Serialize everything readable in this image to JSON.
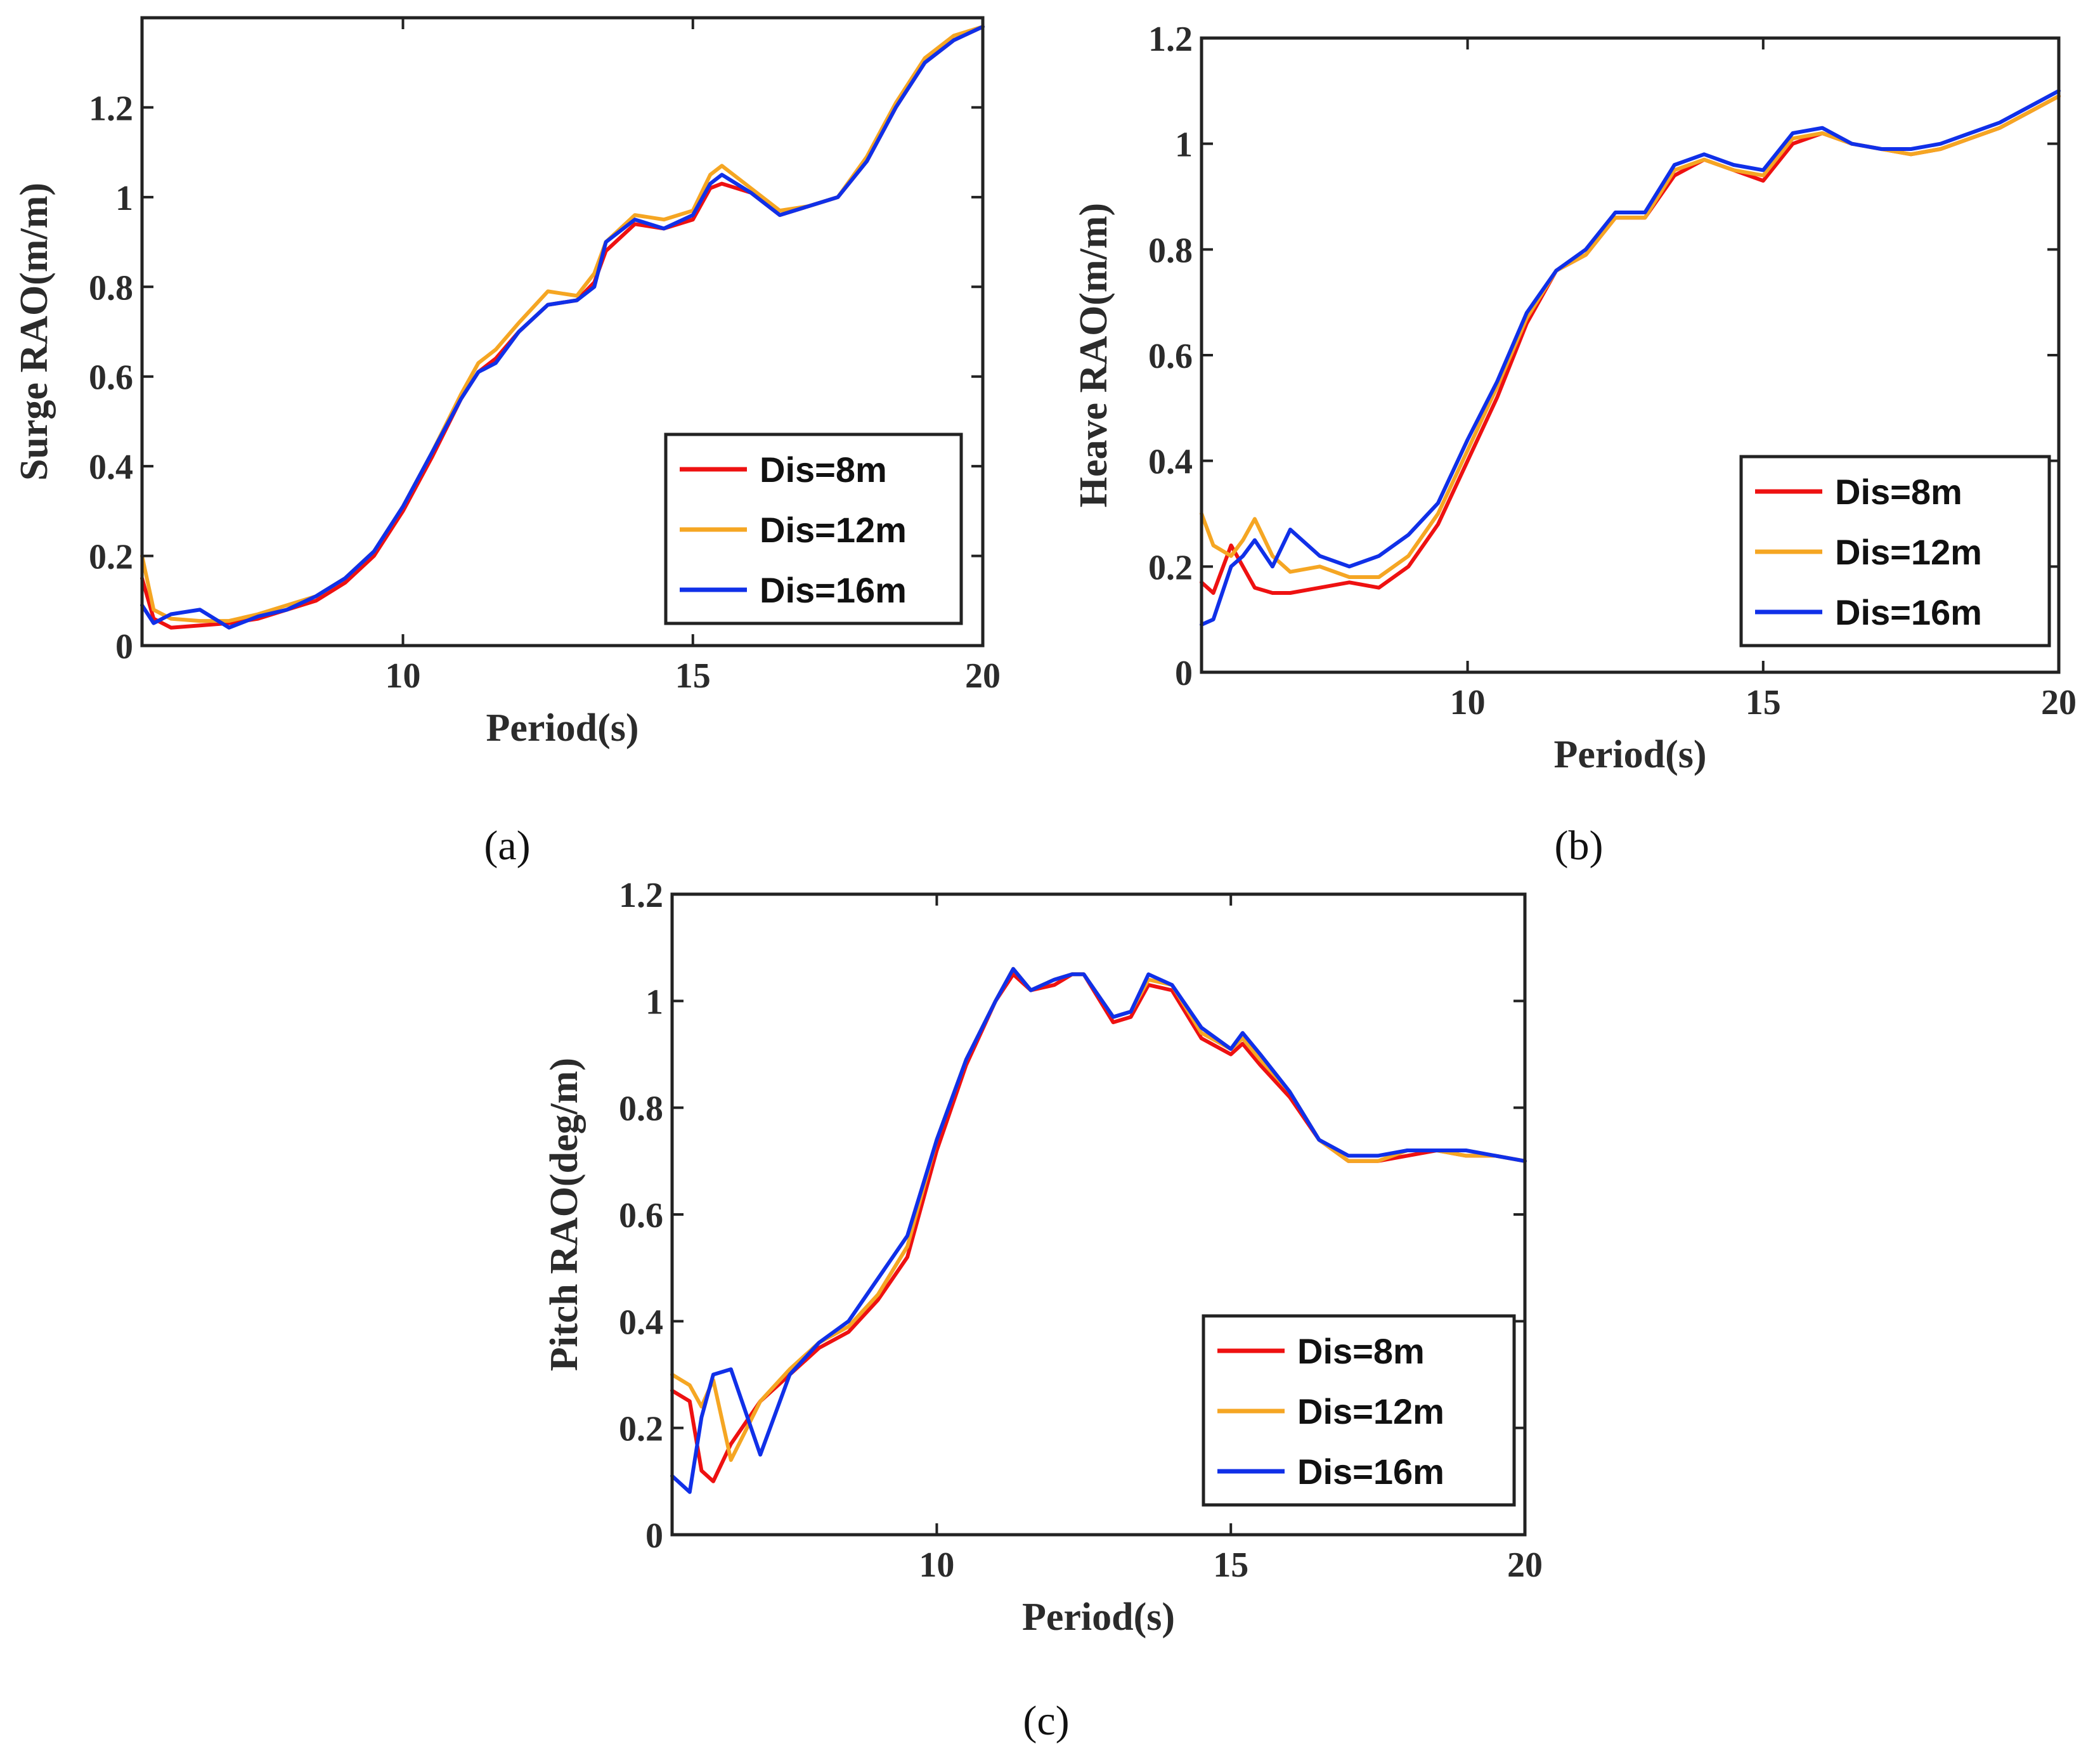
{
  "colors": {
    "series_red": "#ee1111",
    "series_orange": "#f5a623",
    "series_blue": "#1030e8",
    "axis": "#222222"
  },
  "legend_labels": [
    "Dis=8m",
    "Dis=12m",
    "Dis=16m"
  ],
  "chart_data": [
    {
      "type": "line",
      "panel_label": "(a)",
      "xlabel": "Period(s)",
      "ylabel": "Surge RAO(m/m)",
      "xlim": [
        5.5,
        20
      ],
      "ylim": [
        0,
        1.4
      ],
      "xticks": [
        10,
        15,
        20
      ],
      "yticks": [
        0,
        0.2,
        0.4,
        0.6,
        0.8,
        1,
        1.2
      ],
      "ytick_labels": [
        "0",
        "0.2",
        "0.4",
        "0.6",
        "0.8",
        "1",
        "1.2"
      ],
      "legend_position": "lower-right",
      "series": [
        {
          "name": "Dis=8m",
          "color": "#ee1111",
          "x": [
            5.5,
            5.7,
            6,
            6.5,
            7,
            7.5,
            8,
            8.5,
            9,
            9.5,
            10,
            10.5,
            11,
            11.3,
            11.6,
            12,
            12.5,
            13,
            13.3,
            13.5,
            14,
            14.5,
            15,
            15.3,
            15.5,
            16,
            16.5,
            17,
            17.5,
            18,
            18.5,
            19,
            19.5,
            20
          ],
          "y": [
            0.15,
            0.06,
            0.04,
            0.045,
            0.05,
            0.06,
            0.08,
            0.1,
            0.14,
            0.2,
            0.3,
            0.42,
            0.55,
            0.61,
            0.64,
            0.7,
            0.76,
            0.77,
            0.81,
            0.88,
            0.94,
            0.93,
            0.95,
            1.02,
            1.03,
            1.01,
            0.96,
            0.98,
            1.0,
            1.08,
            1.2,
            1.3,
            1.35,
            1.38
          ]
        },
        {
          "name": "Dis=12m",
          "color": "#f5a623",
          "x": [
            5.5,
            5.7,
            6,
            6.5,
            7,
            7.5,
            8,
            8.5,
            9,
            9.5,
            10,
            10.5,
            11,
            11.3,
            11.6,
            12,
            12.5,
            13,
            13.3,
            13.5,
            14,
            14.5,
            15,
            15.3,
            15.5,
            16,
            16.5,
            17,
            17.5,
            18,
            18.5,
            19,
            19.5,
            20
          ],
          "y": [
            0.2,
            0.08,
            0.06,
            0.055,
            0.055,
            0.07,
            0.09,
            0.11,
            0.15,
            0.21,
            0.31,
            0.43,
            0.56,
            0.63,
            0.66,
            0.72,
            0.79,
            0.78,
            0.83,
            0.9,
            0.96,
            0.95,
            0.97,
            1.05,
            1.07,
            1.02,
            0.97,
            0.98,
            1.0,
            1.09,
            1.21,
            1.31,
            1.36,
            1.38
          ]
        },
        {
          "name": "Dis=16m",
          "color": "#1030e8",
          "x": [
            5.5,
            5.7,
            6,
            6.5,
            7,
            7.5,
            8,
            8.5,
            9,
            9.5,
            10,
            10.5,
            11,
            11.3,
            11.6,
            12,
            12.5,
            13,
            13.3,
            13.5,
            14,
            14.5,
            15,
            15.3,
            15.5,
            16,
            16.5,
            17,
            17.5,
            18,
            18.5,
            19,
            19.5,
            20
          ],
          "y": [
            0.09,
            0.05,
            0.07,
            0.08,
            0.04,
            0.065,
            0.08,
            0.11,
            0.15,
            0.21,
            0.31,
            0.43,
            0.55,
            0.61,
            0.63,
            0.7,
            0.76,
            0.77,
            0.8,
            0.9,
            0.95,
            0.93,
            0.96,
            1.03,
            1.05,
            1.01,
            0.96,
            0.98,
            1.0,
            1.08,
            1.2,
            1.3,
            1.35,
            1.38
          ]
        }
      ]
    },
    {
      "type": "line",
      "panel_label": "(b)",
      "xlabel": "Period(s)",
      "ylabel": "Heave RAO(m/m)",
      "xlim": [
        5.5,
        20
      ],
      "ylim": [
        0,
        1.2
      ],
      "xticks": [
        10,
        15,
        20
      ],
      "yticks": [
        0,
        0.2,
        0.4,
        0.6,
        0.8,
        1,
        1.2
      ],
      "ytick_labels": [
        "0",
        "0.2",
        "0.4",
        "0.6",
        "0.8",
        "1",
        "1.2"
      ],
      "legend_position": "lower-right",
      "series": [
        {
          "name": "Dis=8m",
          "color": "#ee1111",
          "x": [
            5.5,
            5.7,
            6,
            6.2,
            6.4,
            6.7,
            7,
            7.5,
            8,
            8.5,
            9,
            9.5,
            10,
            10.5,
            11,
            11.5,
            12,
            12.5,
            13,
            13.5,
            14,
            14.5,
            15,
            15.5,
            16,
            16.5,
            17,
            17.5,
            18,
            18.5,
            19,
            19.5,
            20
          ],
          "y": [
            0.17,
            0.15,
            0.24,
            0.2,
            0.16,
            0.15,
            0.15,
            0.16,
            0.17,
            0.16,
            0.2,
            0.28,
            0.4,
            0.52,
            0.66,
            0.76,
            0.79,
            0.86,
            0.86,
            0.94,
            0.97,
            0.95,
            0.93,
            1.0,
            1.02,
            1.0,
            0.99,
            0.98,
            0.99,
            1.01,
            1.03,
            1.06,
            1.09
          ]
        },
        {
          "name": "Dis=12m",
          "color": "#f5a623",
          "x": [
            5.5,
            5.7,
            6,
            6.2,
            6.4,
            6.7,
            7,
            7.5,
            8,
            8.5,
            9,
            9.5,
            10,
            10.5,
            11,
            11.5,
            12,
            12.5,
            13,
            13.5,
            14,
            14.5,
            15,
            15.5,
            16,
            16.5,
            17,
            17.5,
            18,
            18.5,
            19,
            19.5,
            20
          ],
          "y": [
            0.3,
            0.24,
            0.22,
            0.25,
            0.29,
            0.22,
            0.19,
            0.2,
            0.18,
            0.18,
            0.22,
            0.3,
            0.42,
            0.54,
            0.67,
            0.76,
            0.79,
            0.86,
            0.86,
            0.95,
            0.97,
            0.95,
            0.94,
            1.01,
            1.02,
            1.0,
            0.99,
            0.98,
            0.99,
            1.01,
            1.03,
            1.06,
            1.09
          ]
        },
        {
          "name": "Dis=16m",
          "color": "#1030e8",
          "x": [
            5.5,
            5.7,
            6,
            6.2,
            6.4,
            6.7,
            7,
            7.5,
            8,
            8.5,
            9,
            9.5,
            10,
            10.5,
            11,
            11.5,
            12,
            12.5,
            13,
            13.5,
            14,
            14.5,
            15,
            15.5,
            16,
            16.5,
            17,
            17.5,
            18,
            18.5,
            19,
            19.5,
            20
          ],
          "y": [
            0.09,
            0.1,
            0.2,
            0.22,
            0.25,
            0.2,
            0.27,
            0.22,
            0.2,
            0.22,
            0.26,
            0.32,
            0.44,
            0.55,
            0.68,
            0.76,
            0.8,
            0.87,
            0.87,
            0.96,
            0.98,
            0.96,
            0.95,
            1.02,
            1.03,
            1.0,
            0.99,
            0.99,
            1.0,
            1.02,
            1.04,
            1.07,
            1.1
          ]
        }
      ]
    },
    {
      "type": "line",
      "panel_label": "(c)",
      "xlabel": "Period(s)",
      "ylabel": "Pitch RAO(deg/m)",
      "xlim": [
        5.5,
        20
      ],
      "ylim": [
        0,
        1.2
      ],
      "xticks": [
        10,
        15,
        20
      ],
      "yticks": [
        0,
        0.2,
        0.4,
        0.6,
        0.8,
        1,
        1.2
      ],
      "ytick_labels": [
        "0",
        "0.2",
        "0.4",
        "0.6",
        "0.8",
        "1",
        "1.2"
      ],
      "legend_position": "lower-right",
      "series": [
        {
          "name": "Dis=8m",
          "color": "#ee1111",
          "x": [
            5.5,
            5.8,
            6,
            6.2,
            6.5,
            7,
            7.5,
            8,
            8.5,
            9,
            9.5,
            10,
            10.5,
            11,
            11.3,
            11.6,
            12,
            12.3,
            12.5,
            13,
            13.3,
            13.6,
            14,
            14.5,
            15,
            15.2,
            15.5,
            16,
            16.5,
            17,
            17.5,
            18,
            18.5,
            19,
            19.5,
            20
          ],
          "y": [
            0.27,
            0.25,
            0.12,
            0.1,
            0.17,
            0.25,
            0.3,
            0.35,
            0.38,
            0.44,
            0.52,
            0.72,
            0.88,
            1.0,
            1.05,
            1.02,
            1.03,
            1.05,
            1.05,
            0.96,
            0.97,
            1.03,
            1.02,
            0.93,
            0.9,
            0.92,
            0.88,
            0.82,
            0.74,
            0.7,
            0.7,
            0.71,
            0.72,
            0.71,
            0.71,
            0.7
          ]
        },
        {
          "name": "Dis=12m",
          "color": "#f5a623",
          "x": [
            5.5,
            5.8,
            6,
            6.2,
            6.5,
            7,
            7.5,
            8,
            8.5,
            9,
            9.5,
            10,
            10.5,
            11,
            11.3,
            11.6,
            12,
            12.3,
            12.5,
            13,
            13.3,
            13.6,
            14,
            14.5,
            15,
            15.2,
            15.5,
            16,
            16.5,
            17,
            17.5,
            18,
            18.5,
            19,
            19.5,
            20
          ],
          "y": [
            0.3,
            0.28,
            0.24,
            0.29,
            0.14,
            0.25,
            0.31,
            0.36,
            0.39,
            0.45,
            0.54,
            0.74,
            0.89,
            1.0,
            1.06,
            1.02,
            1.04,
            1.05,
            1.05,
            0.97,
            0.98,
            1.04,
            1.03,
            0.94,
            0.91,
            0.93,
            0.89,
            0.83,
            0.74,
            0.7,
            0.7,
            0.72,
            0.72,
            0.71,
            0.71,
            0.7
          ]
        },
        {
          "name": "Dis=16m",
          "color": "#1030e8",
          "x": [
            5.5,
            5.8,
            6,
            6.2,
            6.5,
            7,
            7.5,
            8,
            8.5,
            9,
            9.5,
            10,
            10.5,
            11,
            11.3,
            11.6,
            12,
            12.3,
            12.5,
            13,
            13.3,
            13.6,
            14,
            14.5,
            15,
            15.2,
            15.5,
            16,
            16.5,
            17,
            17.5,
            18,
            18.5,
            19,
            19.5,
            20
          ],
          "y": [
            0.11,
            0.08,
            0.22,
            0.3,
            0.31,
            0.15,
            0.3,
            0.36,
            0.4,
            0.48,
            0.56,
            0.74,
            0.89,
            1.0,
            1.06,
            1.02,
            1.04,
            1.05,
            1.05,
            0.97,
            0.98,
            1.05,
            1.03,
            0.95,
            0.91,
            0.94,
            0.9,
            0.83,
            0.74,
            0.71,
            0.71,
            0.72,
            0.72,
            0.72,
            0.71,
            0.7
          ]
        }
      ]
    }
  ]
}
